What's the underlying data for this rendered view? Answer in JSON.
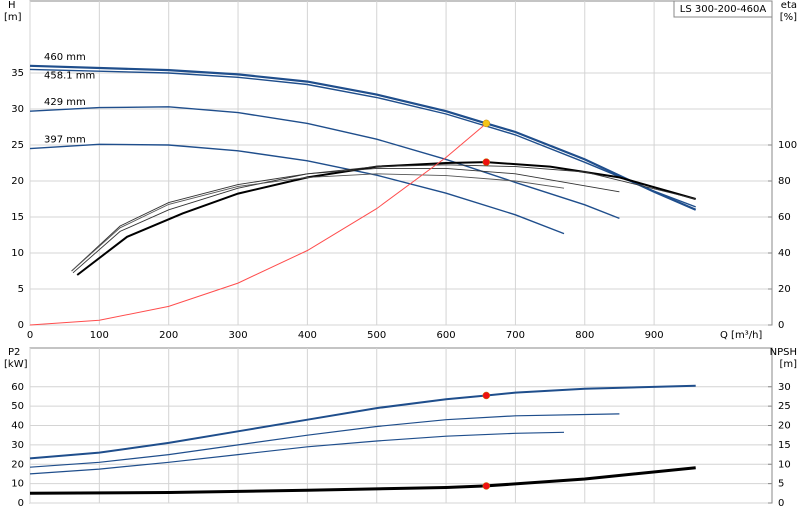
{
  "chart_data": [
    {
      "type": "line",
      "title": "LS 300-200-460A",
      "x_label": "Q [m³/h]",
      "y_label": "H",
      "y_unit": "[m]",
      "y2_label": "eta",
      "y2_unit": "[%]",
      "xlim": [
        0,
        1070
      ],
      "xticks": [
        0,
        100,
        200,
        300,
        400,
        500,
        600,
        700,
        800,
        900
      ],
      "ylim": [
        0,
        45
      ],
      "yticks": [
        0,
        5,
        10,
        15,
        20,
        25,
        30,
        35
      ],
      "y2lim": [
        0,
        180
      ],
      "y2ticks": [
        0,
        20,
        40,
        60,
        80,
        100
      ],
      "grid": true,
      "series": [
        {
          "name": "460 mm",
          "color": "#1f4e8c",
          "axis": "y",
          "x": [
            0,
            200,
            300,
            400,
            500,
            600,
            658,
            700,
            800,
            900,
            960
          ],
          "values": [
            36,
            35.4,
            34.8,
            33.8,
            32,
            29.7,
            28,
            26.8,
            23,
            18.5,
            16
          ]
        },
        {
          "name": "458.1 mm",
          "color": "#1f4e8c",
          "axis": "y",
          "x": [
            0,
            200,
            300,
            400,
            500,
            600,
            700,
            800,
            900,
            960
          ],
          "values": [
            35.5,
            35,
            34.4,
            33.4,
            31.6,
            29.3,
            26.4,
            22.6,
            18.6,
            16.4
          ]
        },
        {
          "name": "429 mm",
          "color": "#1f4e8c",
          "axis": "y",
          "x": [
            0,
            100,
            200,
            300,
            400,
            500,
            600,
            700,
            800,
            850
          ],
          "values": [
            29.7,
            30.2,
            30.3,
            29.5,
            28,
            25.8,
            23,
            19.8,
            16.7,
            14.8
          ]
        },
        {
          "name": "397 mm",
          "color": "#1f4e8c",
          "axis": "y",
          "x": [
            0,
            100,
            200,
            300,
            400,
            500,
            600,
            700,
            770
          ],
          "values": [
            24.5,
            25.1,
            25,
            24.2,
            22.8,
            20.8,
            18.3,
            15.3,
            12.7
          ]
        },
        {
          "color": "#000000",
          "axis": "y2",
          "x": [
            68,
            140,
            220,
            300,
            400,
            500,
            600,
            658,
            750,
            850,
            960
          ],
          "values": [
            27.8,
            49,
            62,
            73,
            82,
            88,
            90,
            90.5,
            88,
            82,
            70
          ]
        },
        {
          "color": "#333333",
          "axis": "y2",
          "x": [
            62,
            130,
            200,
            300,
            400,
            500,
            600,
            700,
            800,
            960
          ],
          "values": [
            29,
            52,
            64,
            76,
            84,
            88,
            89,
            88,
            85,
            70
          ]
        },
        {
          "color": "#333333",
          "axis": "y2",
          "x": [
            60,
            130,
            200,
            300,
            400,
            500,
            600,
            700,
            850
          ],
          "values": [
            30,
            55,
            68,
            78,
            84,
            87,
            87,
            84,
            74
          ]
        },
        {
          "color": "#555555",
          "axis": "y2",
          "x": [
            60,
            130,
            200,
            300,
            400,
            500,
            600,
            700,
            770
          ],
          "values": [
            30,
            54,
            67,
            77,
            82,
            84,
            83,
            80,
            76
          ]
        },
        {
          "color": "#ff4d4d",
          "axis": "y",
          "x": [
            0,
            100,
            200,
            300,
            400,
            500,
            600,
            658
          ],
          "values": [
            0,
            0.65,
            2.59,
            5.82,
            10.35,
            16.17,
            23.28,
            28
          ]
        }
      ],
      "points": [
        {
          "x": 658,
          "value": 28,
          "axis": "y",
          "color": "#f5c518"
        },
        {
          "x": 658,
          "value": 90.5,
          "axis": "y2",
          "color": "#ee1111"
        }
      ]
    },
    {
      "type": "line",
      "y_label": "P2",
      "y_unit": "[kW]",
      "y2_label": "NPSH",
      "y2_unit": "[m]",
      "xlim": [
        0,
        1070
      ],
      "xticks": [
        0,
        100,
        200,
        300,
        400,
        500,
        600,
        700,
        800,
        900
      ],
      "ylim": [
        0,
        80
      ],
      "yticks": [
        0,
        10,
        20,
        30,
        40,
        50,
        60
      ],
      "y2lim": [
        0,
        40
      ],
      "y2ticks": [
        0,
        5,
        10,
        15,
        20,
        25,
        30
      ],
      "grid": true,
      "series": [
        {
          "color": "#1f4e8c",
          "axis": "y",
          "x": [
            0,
            100,
            200,
            300,
            400,
            500,
            600,
            658,
            700,
            800,
            960
          ],
          "values": [
            23,
            26,
            31,
            37,
            43,
            49,
            53.5,
            55.5,
            57,
            59,
            60.5
          ]
        },
        {
          "color": "#1f4e8c",
          "axis": "y",
          "x": [
            0,
            100,
            200,
            300,
            400,
            500,
            600,
            700,
            850
          ],
          "values": [
            18.5,
            21,
            25,
            30,
            35,
            39.5,
            43,
            45,
            46
          ]
        },
        {
          "color": "#1f4e8c",
          "axis": "y",
          "x": [
            0,
            100,
            200,
            300,
            400,
            500,
            600,
            700,
            770
          ],
          "values": [
            15,
            17.5,
            21,
            25,
            29,
            32,
            34.5,
            36,
            36.5
          ]
        },
        {
          "color": "#000000",
          "axis": "y2",
          "x": [
            0,
            200,
            400,
            600,
            658,
            800,
            960
          ],
          "values": [
            2.5,
            2.7,
            3.3,
            4,
            4.4,
            6.2,
            9.1
          ]
        }
      ],
      "points": [
        {
          "x": 658,
          "value": 55.5,
          "axis": "y",
          "color": "#ee1111"
        },
        {
          "x": 658,
          "value": 4.4,
          "axis": "y2",
          "color": "#ee1111"
        }
      ]
    }
  ]
}
